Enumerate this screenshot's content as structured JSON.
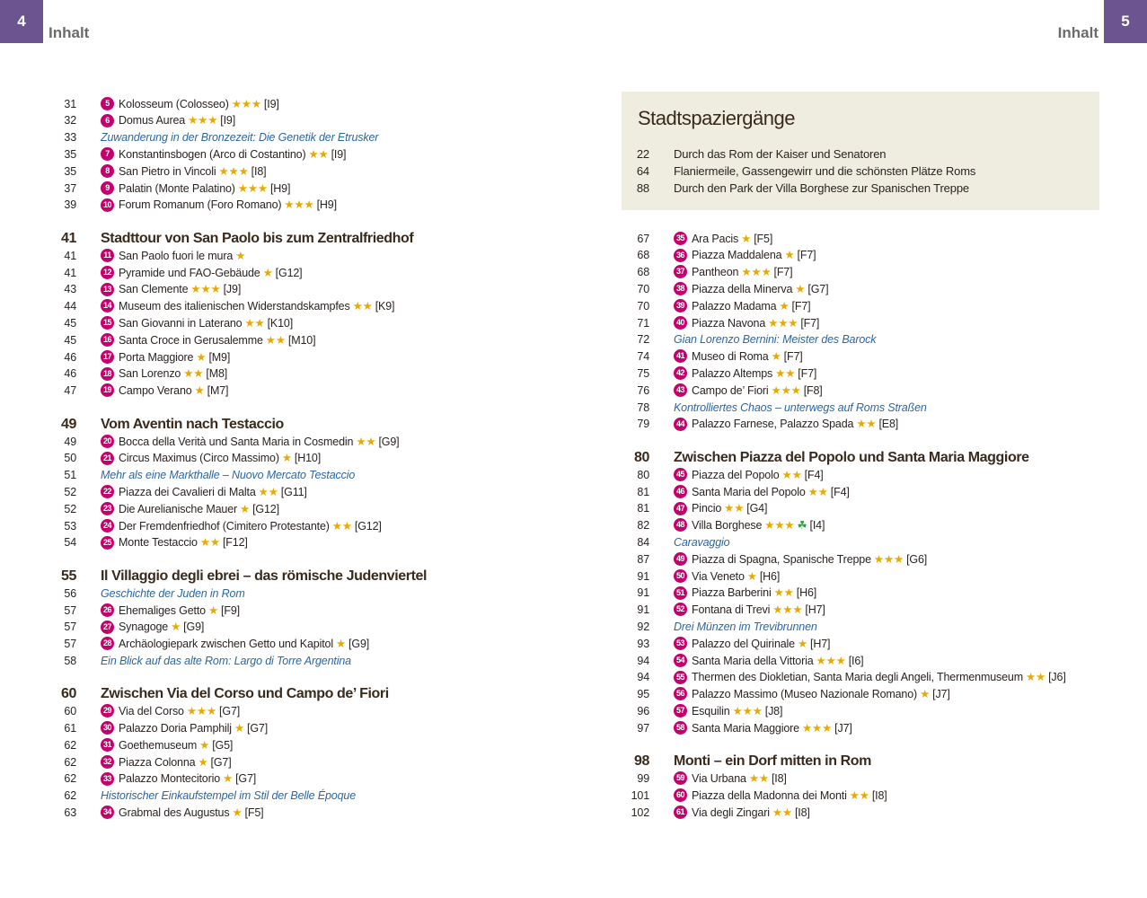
{
  "header": {
    "left_page": "4",
    "left_title": "Inhalt",
    "right_title": "Inhalt",
    "right_page": "5"
  },
  "left": {
    "entries": [
      {
        "page": "31",
        "num": "5",
        "name": "Kolosseum (Colosseo)",
        "stars": "★★★",
        "ref": "[I9]"
      },
      {
        "page": "32",
        "num": "6",
        "name": "Domus Aurea",
        "stars": "★★★",
        "ref": "[I9]"
      },
      {
        "page": "33",
        "note": "Zuwanderung in der Bronzezeit: Die Genetik der Etrusker"
      },
      {
        "page": "35",
        "num": "7",
        "name": "Konstantinsbogen (Arco di Costantino)",
        "stars": "★★",
        "ref": "[I9]"
      },
      {
        "page": "35",
        "num": "8",
        "name": "San Pietro in Vincoli",
        "stars": "★★★",
        "ref": "[I8]"
      },
      {
        "page": "37",
        "num": "9",
        "name": "Palatin (Monte Palatino)",
        "stars": "★★★",
        "ref": "[H9]"
      },
      {
        "page": "39",
        "num": "10",
        "name": "Forum Romanum (Foro Romano)",
        "stars": "★★★",
        "ref": "[H9]"
      },
      {
        "page": "41",
        "heading": "Stadttour von San Paolo bis zum Zentralfriedhof"
      },
      {
        "page": "41",
        "num": "11",
        "name": "San Paolo fuori le mura",
        "stars": "★"
      },
      {
        "page": "41",
        "num": "12",
        "name": "Pyramide und FAO-Gebäude",
        "stars": "★",
        "ref": "[G12]"
      },
      {
        "page": "43",
        "num": "13",
        "name": "San Clemente",
        "stars": "★★★",
        "ref": "[J9]"
      },
      {
        "page": "44",
        "num": "14",
        "name": "Museum des italienischen Widerstandskampfes",
        "stars": "★★",
        "ref": "[K9]"
      },
      {
        "page": "45",
        "num": "15",
        "name": "San Giovanni in Laterano",
        "stars": "★★",
        "ref": "[K10]"
      },
      {
        "page": "45",
        "num": "16",
        "name": "Santa Croce in Gerusalemme",
        "stars": "★★",
        "ref": "[M10]"
      },
      {
        "page": "46",
        "num": "17",
        "name": "Porta Maggiore",
        "stars": "★",
        "ref": "[M9]"
      },
      {
        "page": "46",
        "num": "18",
        "name": "San Lorenzo",
        "stars": "★★",
        "ref": "[M8]"
      },
      {
        "page": "47",
        "num": "19",
        "name": "Campo Verano",
        "stars": "★",
        "ref": "[M7]"
      },
      {
        "page": "49",
        "heading": "Vom Aventin nach Testaccio"
      },
      {
        "page": "49",
        "num": "20",
        "name": "Bocca della Verità und Santa Maria in Cosmedin",
        "stars": "★★",
        "ref": "[G9]"
      },
      {
        "page": "50",
        "num": "21",
        "name": "Circus Maximus (Circo Massimo)",
        "stars": "★",
        "ref": "[H10]"
      },
      {
        "page": "51",
        "note": "Mehr als eine Markthalle – Nuovo Mercato Testaccio"
      },
      {
        "page": "52",
        "num": "22",
        "name": "Piazza dei Cavalieri di Malta",
        "stars": "★★",
        "ref": "[G11]"
      },
      {
        "page": "52",
        "num": "23",
        "name": "Die Aurelianische Mauer",
        "stars": "★",
        "ref": "[G12]"
      },
      {
        "page": "53",
        "num": "24",
        "name": "Der Fremdenfriedhof (Cimitero Protestante)",
        "stars": "★★",
        "ref": "[G12]"
      },
      {
        "page": "54",
        "num": "25",
        "name": "Monte Testaccio",
        "stars": "★★",
        "ref": "[F12]"
      },
      {
        "page": "55",
        "heading": "Il Villaggio degli ebrei – das römische Judenviertel"
      },
      {
        "page": "56",
        "note": "Geschichte der Juden in Rom"
      },
      {
        "page": "57",
        "num": "26",
        "name": "Ehemaliges Getto",
        "stars": "★",
        "ref": "[F9]"
      },
      {
        "page": "57",
        "num": "27",
        "name": "Synagoge",
        "stars": "★",
        "ref": "[G9]"
      },
      {
        "page": "57",
        "num": "28",
        "name": "Archäologiepark zwischen Getto und Kapitol",
        "stars": "★",
        "ref": "[G9]"
      },
      {
        "page": "58",
        "note": "Ein Blick auf das alte Rom: Largo di Torre Argentina"
      },
      {
        "page": "60",
        "heading": "Zwischen Via del Corso und Campo de’ Fiori"
      },
      {
        "page": "60",
        "num": "29",
        "name": "Via del Corso",
        "stars": "★★★",
        "ref": "[G7]"
      },
      {
        "page": "61",
        "num": "30",
        "name": "Palazzo Doria Pamphilj",
        "stars": "★",
        "ref": "[G7]"
      },
      {
        "page": "62",
        "num": "31",
        "name": "Goethemuseum",
        "stars": "★",
        "ref": "[G5]"
      },
      {
        "page": "62",
        "num": "32",
        "name": "Piazza Colonna",
        "stars": "★",
        "ref": "[G7]"
      },
      {
        "page": "62",
        "num": "33",
        "name": "Palazzo Montecitorio",
        "stars": "★",
        "ref": "[G7]"
      },
      {
        "page": "62",
        "note": "Historischer Einkaufstempel im Stil der Belle Époque"
      },
      {
        "page": "63",
        "num": "34",
        "name": "Grabmal des Augustus",
        "stars": "★",
        "ref": "[F5]"
      }
    ]
  },
  "box": {
    "title": "Stadtspaziergänge",
    "entries": [
      {
        "page": "22",
        "text": "Durch das Rom der Kaiser und Senatoren"
      },
      {
        "page": "64",
        "text": "Flaniermeile, Gassengewirr und die schönsten Plätze Roms"
      },
      {
        "page": "88",
        "text": "Durch den Park der Villa Borghese zur Spanischen Treppe"
      }
    ]
  },
  "right": {
    "entries": [
      {
        "page": "67",
        "num": "35",
        "name": "Ara Pacis",
        "stars": "★",
        "ref": "[F5]"
      },
      {
        "page": "68",
        "num": "36",
        "name": "Piazza Maddalena",
        "stars": "★",
        "ref": "[F7]"
      },
      {
        "page": "68",
        "num": "37",
        "name": "Pantheon",
        "stars": "★★★",
        "ref": "[F7]"
      },
      {
        "page": "70",
        "num": "38",
        "name": "Piazza della Minerva",
        "stars": "★",
        "ref": "[G7]"
      },
      {
        "page": "70",
        "num": "39",
        "name": "Palazzo Madama",
        "stars": "★",
        "ref": "[F7]"
      },
      {
        "page": "71",
        "num": "40",
        "name": "Piazza Navona",
        "stars": "★★★",
        "ref": "[F7]"
      },
      {
        "page": "72",
        "note": "Gian Lorenzo Bernini: Meister des Barock"
      },
      {
        "page": "74",
        "num": "41",
        "name": "Museo di Roma",
        "stars": "★",
        "ref": "[F7]"
      },
      {
        "page": "75",
        "num": "42",
        "name": "Palazzo Altemps",
        "stars": "★★",
        "ref": "[F7]"
      },
      {
        "page": "76",
        "num": "43",
        "name": "Campo de’ Fiori",
        "stars": "★★★",
        "ref": "[F8]"
      },
      {
        "page": "78",
        "note": "Kontrolliertes Chaos – unterwegs auf Roms Straßen"
      },
      {
        "page": "79",
        "num": "44",
        "name": "Palazzo Farnese, Palazzo Spada",
        "stars": "★★",
        "ref": "[E8]"
      },
      {
        "page": "80",
        "heading": "Zwischen Piazza del Popolo und Santa Maria Maggiore"
      },
      {
        "page": "80",
        "num": "45",
        "name": "Piazza del Popolo",
        "stars": "★★",
        "ref": "[F4]"
      },
      {
        "page": "81",
        "num": "46",
        "name": "Santa Maria del Popolo",
        "stars": "★★",
        "ref": "[F4]"
      },
      {
        "page": "81",
        "num": "47",
        "name": "Pincio",
        "stars": "★★",
        "ref": "[G4]"
      },
      {
        "page": "82",
        "num": "48",
        "name": "Villa Borghese",
        "stars": "★★★",
        "extra": "☘",
        "ref": "[I4]"
      },
      {
        "page": "84",
        "note": "Caravaggio"
      },
      {
        "page": "87",
        "num": "49",
        "name": "Piazza di Spagna, Spanische Treppe",
        "stars": "★★★",
        "ref": "[G6]"
      },
      {
        "page": "91",
        "num": "50",
        "name": "Via Veneto",
        "stars": "★",
        "ref": "[H6]"
      },
      {
        "page": "91",
        "num": "51",
        "name": "Piazza Barberini",
        "stars": "★★",
        "ref": "[H6]"
      },
      {
        "page": "91",
        "num": "52",
        "name": "Fontana di Trevi",
        "stars": "★★★",
        "ref": "[H7]"
      },
      {
        "page": "92",
        "note": "Drei Münzen im Trevibrunnen"
      },
      {
        "page": "93",
        "num": "53",
        "name": "Palazzo del Quirinale",
        "stars": "★",
        "ref": "[H7]"
      },
      {
        "page": "94",
        "num": "54",
        "name": "Santa Maria della Vittoria",
        "stars": "★★★",
        "ref": "[I6]"
      },
      {
        "page": "94",
        "num": "55",
        "name": "Thermen des Diokletian, Santa Maria degli Angeli, Thermenmuseum",
        "stars": "★★",
        "ref": "[J6]"
      },
      {
        "page": "95",
        "num": "56",
        "name": "Palazzo Massimo (Museo Nazionale Romano)",
        "stars": "★",
        "ref": "[J7]"
      },
      {
        "page": "96",
        "num": "57",
        "name": "Esquilin",
        "stars": "★★★",
        "ref": "[J8]"
      },
      {
        "page": "97",
        "num": "58",
        "name": "Santa Maria Maggiore",
        "stars": "★★★",
        "ref": "[J7]"
      },
      {
        "page": "98",
        "heading": "Monti – ein Dorf mitten in Rom"
      },
      {
        "page": "99",
        "num": "59",
        "name": "Via Urbana",
        "stars": "★★",
        "ref": "[I8]"
      },
      {
        "page": "101",
        "num": "60",
        "name": "Piazza della Madonna dei Monti",
        "stars": "★★",
        "ref": "[I8]"
      },
      {
        "page": "102",
        "num": "61",
        "name": "Via degli Zingari",
        "stars": "★★",
        "ref": "[I8]"
      }
    ]
  }
}
